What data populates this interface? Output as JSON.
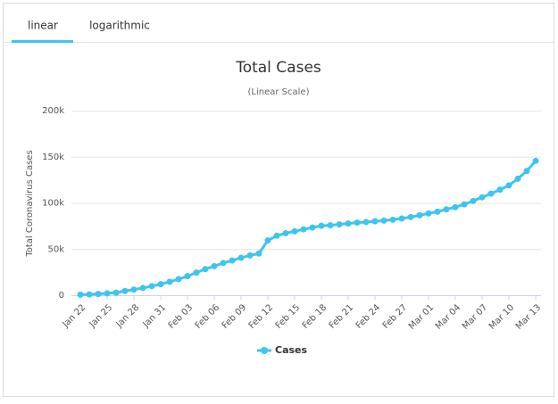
{
  "tabs": [
    "linear",
    "logarithmic"
  ],
  "chart_data": {
    "type": "line",
    "title": "Total Cases",
    "subtitle": "(Linear Scale)",
    "y_label": "Total Coronavirus Cases",
    "categories": [
      "Jan 22",
      null,
      null,
      "Jan 25",
      null,
      null,
      "Jan 28",
      null,
      null,
      "Jan 31",
      null,
      null,
      "Feb 03",
      null,
      null,
      "Feb 06",
      null,
      null,
      "Feb 09",
      null,
      null,
      "Feb 12",
      null,
      null,
      "Feb 15",
      null,
      null,
      "Feb 18",
      null,
      null,
      "Feb 21",
      null,
      null,
      "Feb 24",
      null,
      null,
      "Feb 27",
      null,
      null,
      "Mar 01",
      null,
      null,
      "Mar 04",
      null,
      null,
      "Mar 07",
      null,
      null,
      "Mar 10",
      null,
      null,
      "Mar 13"
    ],
    "series": [
      {
        "name": "Cases",
        "color": "#3ec5ef",
        "values": [
          580,
          845,
          1317,
          2015,
          2800,
          4581,
          6058,
          7813,
          9823,
          11950,
          14553,
          17391,
          20630,
          24545,
          28266,
          31439,
          34876,
          37552,
          40553,
          43099,
          45134,
          59287,
          64438,
          67100,
          69197,
          71329,
          73332,
          75184,
          75700,
          76677,
          77673,
          78651,
          79205,
          80087,
          80828,
          81820,
          83112,
          84615,
          86604,
          88585,
          90443,
          93016,
          95314,
          98425,
          102050,
          106099,
          109991,
          114381,
          118948,
          126214,
          134576,
          145483
        ]
      }
    ],
    "ylim": [
      0,
      200000
    ],
    "yticks": [
      0,
      {
        "value": 50000,
        "label": "50k"
      },
      {
        "value": 100000,
        "label": "100k"
      },
      {
        "value": 150000,
        "label": "150k"
      },
      {
        "value": 200000,
        "label": "200k"
      }
    ],
    "grid": true
  }
}
